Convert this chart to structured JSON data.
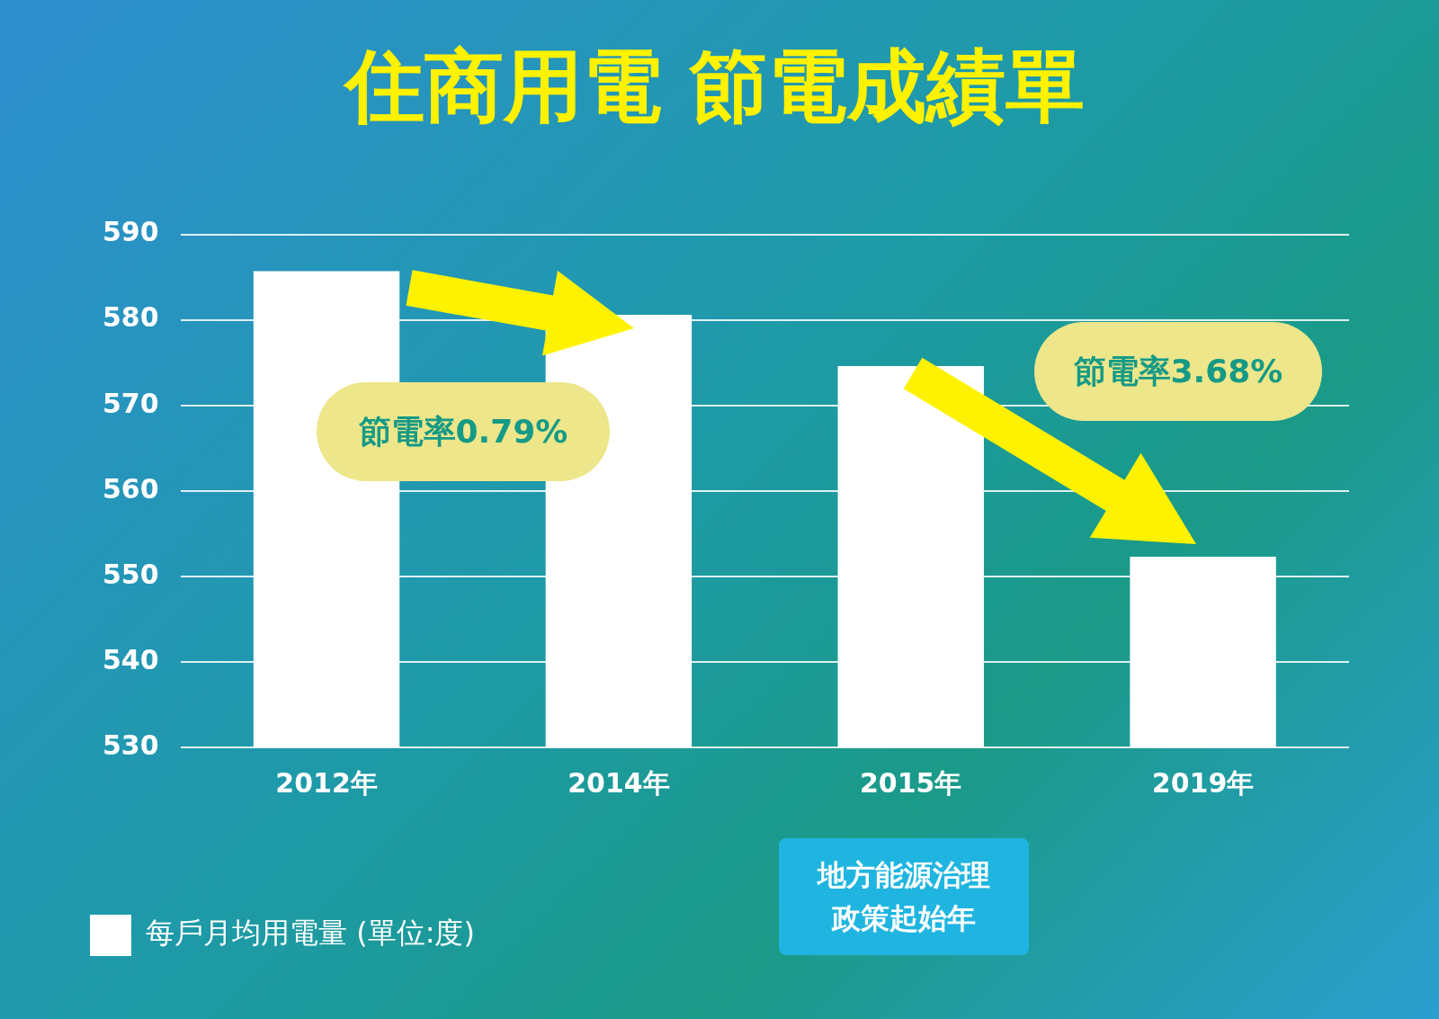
{
  "chart_data": {
    "type": "bar",
    "title": "住商用電 節電成績單",
    "categories": [
      "2012年",
      "2014年",
      "2015年",
      "2019年"
    ],
    "series": [
      {
        "name": "每戶月均用電量 (單位:度)",
        "color": "#ffffff",
        "values": [
          585.7,
          580.6,
          574.6,
          552.3
        ]
      }
    ],
    "ylim": [
      530,
      590
    ],
    "yticks": [
      530,
      540,
      550,
      560,
      570,
      580,
      590
    ],
    "grid": "y",
    "legend": "bottom left",
    "annotations": [
      "節電率0.79%",
      "節電率3.68%",
      "地方能源治理政策起始年"
    ]
  }
}
